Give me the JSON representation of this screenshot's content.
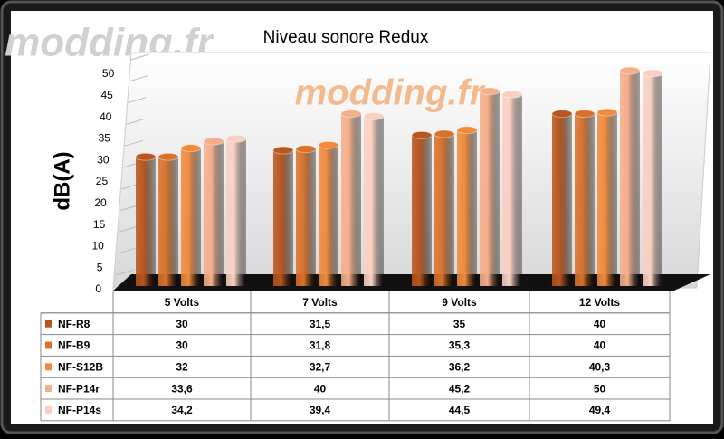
{
  "chart_data": {
    "type": "bar",
    "title": "Niveau sonore Redux",
    "watermark": "modding.fr",
    "y_label": "dB(A)",
    "categories": [
      "5 Volts",
      "7 Volts",
      "9 Volts",
      "12 Volts"
    ],
    "series": [
      {
        "name": "NF-R8",
        "color": "#b8561e",
        "values": [
          30,
          31.5,
          35,
          40
        ],
        "value_labels": [
          "30",
          "31,5",
          "35",
          "40"
        ]
      },
      {
        "name": "NF-B9",
        "color": "#d9712a",
        "values": [
          30,
          31.8,
          35.3,
          40
        ],
        "value_labels": [
          "30",
          "31,8",
          "35,3",
          "40"
        ]
      },
      {
        "name": "NF-S12B",
        "color": "#f08a3c",
        "values": [
          32,
          32.7,
          36.2,
          40.3
        ],
        "value_labels": [
          "32",
          "32,7",
          "36,2",
          "40,3"
        ]
      },
      {
        "name": "NF-P14r",
        "color": "#f4ae8a",
        "values": [
          33.6,
          40,
          45.2,
          50
        ],
        "value_labels": [
          "33,6",
          "40",
          "45,2",
          "50"
        ]
      },
      {
        "name": "NF-P14s",
        "color": "#f8d0c2",
        "values": [
          34.2,
          39.4,
          44.5,
          49.4
        ],
        "value_labels": [
          "34,2",
          "39,4",
          "44,5",
          "49,4"
        ]
      }
    ],
    "ylim": [
      0,
      50
    ],
    "yticks": [
      0,
      5,
      10,
      15,
      20,
      25,
      30,
      35,
      40,
      45,
      50
    ]
  }
}
